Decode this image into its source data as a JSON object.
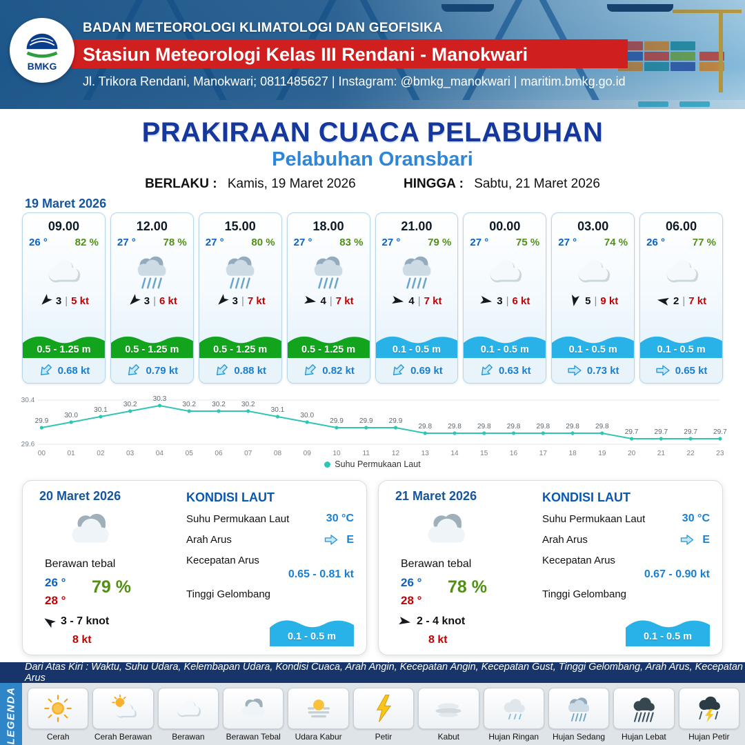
{
  "header": {
    "logo_text": "BMKG",
    "agency": "BADAN METEOROLOGI KLIMATOLOGI DAN GEOFISIKA",
    "station": "Stasiun Meteorologi Kelas III Rendani - Manokwari",
    "contact": "Jl. Trikora Rendani, Manokwari; 0811485627 | Instagram: @bmkg_manokwari | maritim.bmkg.go.id"
  },
  "title": {
    "main": "PRAKIRAAN CUACA PELABUHAN",
    "subtitle": "Pelabuhan Oransbari",
    "valid_from_label": "BERLAKU :",
    "valid_from": "Kamis, 19 Maret 2026",
    "valid_to_label": "HINGGA :",
    "valid_to": "Sabtu, 21 Maret 2026"
  },
  "forecast": {
    "date": "19 Maret 2026",
    "sep": "|",
    "cards": [
      {
        "time": "09.00",
        "temp": "26 °",
        "humidity": "82 %",
        "icon": "cloud",
        "wind_deg": 135,
        "wind_speed": "3",
        "gust": "5 kt",
        "wave": "0.5 - 1.25 m",
        "wave_color": "green",
        "current_deg": 135,
        "current_speed": "0.68 kt"
      },
      {
        "time": "12.00",
        "temp": "27 °",
        "humidity": "78 %",
        "icon": "rain",
        "wind_deg": 135,
        "wind_speed": "3",
        "gust": "6 kt",
        "wave": "0.5 - 1.25 m",
        "wave_color": "green",
        "current_deg": 135,
        "current_speed": "0.79 kt"
      },
      {
        "time": "15.00",
        "temp": "27 °",
        "humidity": "80 %",
        "icon": "rain",
        "wind_deg": 135,
        "wind_speed": "3",
        "gust": "7 kt",
        "wave": "0.5 - 1.25 m",
        "wave_color": "green",
        "current_deg": 135,
        "current_speed": "0.88 kt"
      },
      {
        "time": "18.00",
        "temp": "27 °",
        "humidity": "83 %",
        "icon": "rain",
        "wind_deg": 10,
        "wind_speed": "4",
        "gust": "7 kt",
        "wave": "0.5 - 1.25 m",
        "wave_color": "green",
        "current_deg": 135,
        "current_speed": "0.82 kt"
      },
      {
        "time": "21.00",
        "temp": "27 °",
        "humidity": "79 %",
        "icon": "rain",
        "wind_deg": 10,
        "wind_speed": "4",
        "gust": "7 kt",
        "wave": "0.1 - 0.5 m",
        "wave_color": "blue",
        "current_deg": 135,
        "current_speed": "0.69 kt"
      },
      {
        "time": "00.00",
        "temp": "27 °",
        "humidity": "75 %",
        "icon": "cloud",
        "wind_deg": 10,
        "wind_speed": "3",
        "gust": "6 kt",
        "wave": "0.1 - 0.5 m",
        "wave_color": "blue",
        "current_deg": 135,
        "current_speed": "0.63 kt"
      },
      {
        "time": "03.00",
        "temp": "27 °",
        "humidity": "74 %",
        "icon": "cloud",
        "wind_deg": 100,
        "wind_speed": "5",
        "gust": "9 kt",
        "wave": "0.1 - 0.5 m",
        "wave_color": "blue",
        "current_deg": 0,
        "current_speed": "0.73 kt"
      },
      {
        "time": "06.00",
        "temp": "26 °",
        "humidity": "77 %",
        "icon": "cloud",
        "wind_deg": 190,
        "wind_speed": "2",
        "gust": "7 kt",
        "wave": "0.1 - 0.5 m",
        "wave_color": "blue",
        "current_deg": 0,
        "current_speed": "0.65 kt"
      }
    ]
  },
  "chart_data": {
    "type": "line",
    "title": "Suhu Permukaan Laut",
    "legend_label": "Suhu Permukaan Laut",
    "legend_position": "bottom",
    "x": [
      "00",
      "01",
      "02",
      "03",
      "04",
      "05",
      "06",
      "07",
      "08",
      "09",
      "10",
      "11",
      "12",
      "13",
      "14",
      "15",
      "16",
      "17",
      "18",
      "19",
      "20",
      "21",
      "22",
      "23"
    ],
    "values": [
      29.9,
      30.0,
      30.1,
      30.2,
      30.3,
      30.2,
      30.2,
      30.2,
      30.1,
      30.0,
      29.9,
      29.9,
      29.9,
      29.8,
      29.8,
      29.8,
      29.8,
      29.8,
      29.8,
      29.8,
      29.7,
      29.7,
      29.7,
      29.7
    ],
    "ylim": [
      29.6,
      30.4
    ],
    "xlabel": "",
    "ylabel": "",
    "grid": true,
    "line_color": "#2fc5b5"
  },
  "days": [
    {
      "date": "20 Maret 2026",
      "icon": "cloud-thick",
      "condition": "Berawan tebal",
      "temp_min": "26 °",
      "temp_max": "28 °",
      "humidity": "79 %",
      "wind_deg": 215,
      "wind_range": "3 - 7 knot",
      "gust": "8 kt",
      "sea": {
        "title": "KONDISI LAUT",
        "sst_label": "Suhu Permukaan Laut",
        "sst": "30 °C",
        "current_dir_label": "Arah Arus",
        "current_dir_deg": 0,
        "current_dir": "E",
        "current_speed_label": "Kecepatan Arus",
        "current_speed": "0.65  - 0.81 kt",
        "wave_label": "Tinggi Gelombang",
        "wave": "0.1 - 0.5 m"
      }
    },
    {
      "date": "21 Maret 2026",
      "icon": "cloud-thick",
      "condition": "Berawan tebal",
      "temp_min": "26 °",
      "temp_max": "28 °",
      "humidity": "78 %",
      "wind_deg": 10,
      "wind_range": "2  - 4 knot",
      "gust": "8 kt",
      "sea": {
        "title": "KONDISI LAUT",
        "sst_label": "Suhu Permukaan Laut",
        "sst": "30 °C",
        "current_dir_label": "Arah Arus",
        "current_dir_deg": 0,
        "current_dir": "E",
        "current_speed_label": "Kecepatan Arus",
        "current_speed": "0.67 - 0.90 kt",
        "wave_label": "Tinggi Gelombang",
        "wave": "0.1 - 0.5 m"
      }
    }
  ],
  "legend": {
    "header": "Dari Atas Kiri : Waktu, Suhu Udara, Kelembapan Udara, Kondisi Cuaca, Arah Angin, Kecepatan Angin, Kecepatan Gust, Tinggi Gelombang, Arah Arus, Kecepatan Arus",
    "side_label": "LEGENDA",
    "items": [
      {
        "label": "Cerah",
        "icon": "sun"
      },
      {
        "label": "Cerah Berawan",
        "icon": "sun-cloud"
      },
      {
        "label": "Berawan",
        "icon": "cloud"
      },
      {
        "label": "Berawan Tebal",
        "icon": "cloud-thick"
      },
      {
        "label": "Udara Kabur",
        "icon": "haze"
      },
      {
        "label": "Petir",
        "icon": "lightning"
      },
      {
        "label": "Kabut",
        "icon": "fog"
      },
      {
        "label": "Hujan Ringan",
        "icon": "rain-light"
      },
      {
        "label": "Hujan Sedang",
        "icon": "rain-medium"
      },
      {
        "label": "Hujan Lebat",
        "icon": "rain-heavy"
      },
      {
        "label": "Hujan Petir",
        "icon": "rain-thunder"
      }
    ]
  },
  "colors": {
    "accent_blue": "#1456a0",
    "title_blue": "#16389c",
    "subtitle_blue": "#2e86d8",
    "temp_blue": "#0b62c4",
    "humidity_green": "#518f15",
    "gust_red": "#c40000",
    "value_blue": "#1a7fd0",
    "wave_green": "#12a41c",
    "wave_blue": "#29b2e8",
    "header_red": "#d01f1f",
    "chart_line": "#2fc5b5"
  }
}
